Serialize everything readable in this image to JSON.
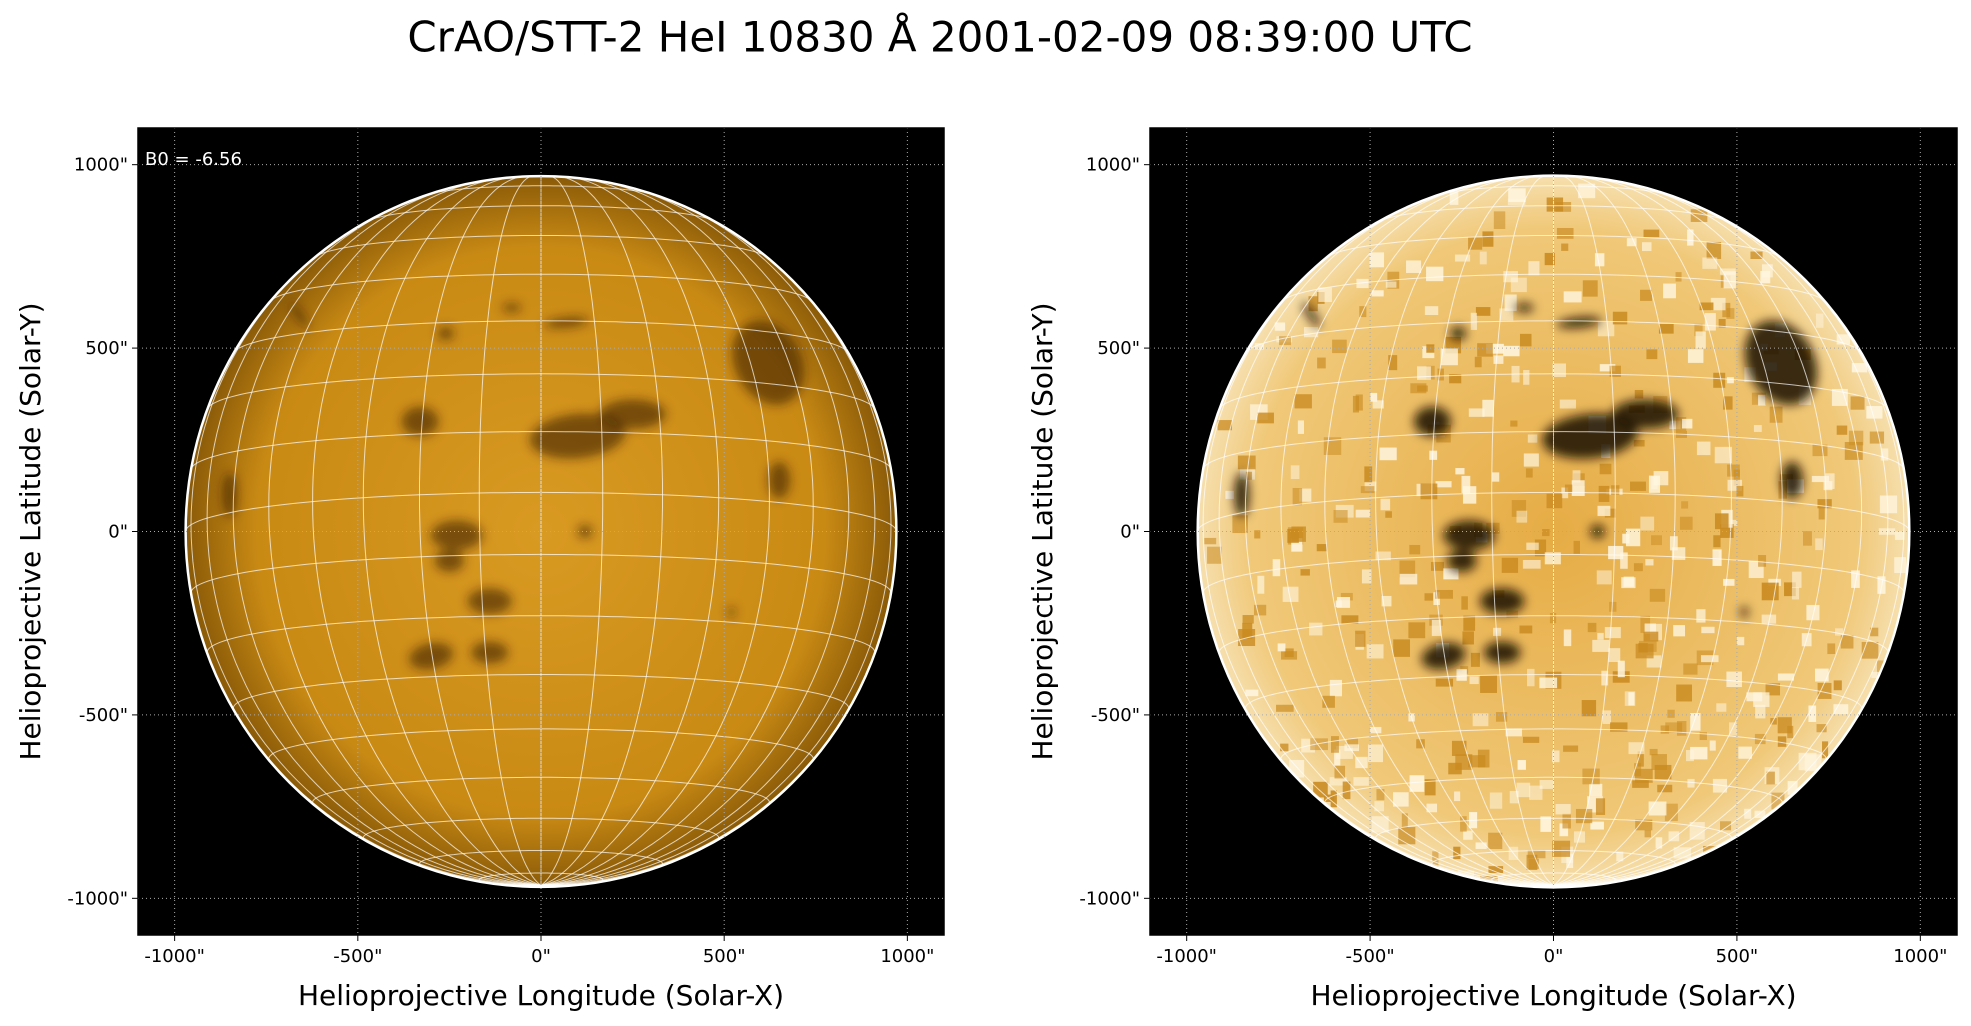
{
  "title": "CrAO/STT-2 HeI 10830 Å 2001-02-09 08:39:00 UTC",
  "chart_data": [
    {
      "type": "image",
      "annotation": "B0 = -6.56",
      "xlabel": "Helioprojective Longitude (Solar-X)",
      "ylabel": "Helioprojective Latitude (Solar-Y)",
      "xlim": [
        -1100,
        1100
      ],
      "ylim": [
        -1100,
        1100
      ],
      "xticks": [
        {
          "value": -1000,
          "label": "-1000\""
        },
        {
          "value": -500,
          "label": "-500\""
        },
        {
          "value": 0,
          "label": "0\""
        },
        {
          "value": 500,
          "label": "500\""
        },
        {
          "value": 1000,
          "label": "1000\""
        }
      ],
      "yticks": [
        {
          "value": -1000,
          "label": "-1000\""
        },
        {
          "value": -500,
          "label": "-500\""
        },
        {
          "value": 0,
          "label": "0\""
        },
        {
          "value": 500,
          "label": "500\""
        },
        {
          "value": 1000,
          "label": "1000\""
        }
      ],
      "grid": true
    },
    {
      "type": "image",
      "xlabel": "Helioprojective Longitude (Solar-X)",
      "ylabel": "Helioprojective Latitude (Solar-Y)",
      "xlim": [
        -1100,
        1100
      ],
      "ylim": [
        -1100,
        1100
      ],
      "xticks": [
        {
          "value": -1000,
          "label": "-1000\""
        },
        {
          "value": -500,
          "label": "-500\""
        },
        {
          "value": 0,
          "label": "0\""
        },
        {
          "value": 500,
          "label": "500\""
        },
        {
          "value": 1000,
          "label": "1000\""
        }
      ],
      "yticks": [
        {
          "value": -1000,
          "label": "-1000\""
        },
        {
          "value": -500,
          "label": "-500\""
        },
        {
          "value": 0,
          "label": "0\""
        },
        {
          "value": 500,
          "label": "500\""
        },
        {
          "value": 1000,
          "label": "1000\""
        }
      ],
      "grid": true
    }
  ]
}
